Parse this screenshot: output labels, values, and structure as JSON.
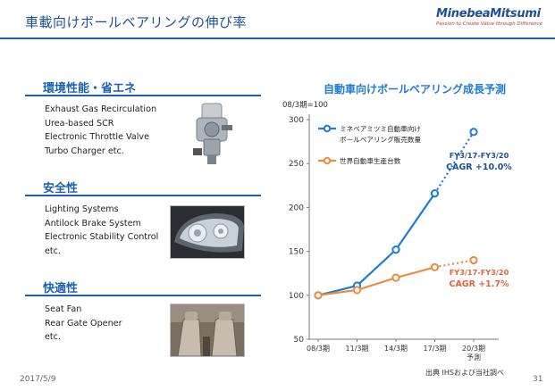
{
  "header": {
    "title": "車載向けボールベアリングの伸び率",
    "logo": "MinebeaMitsumi",
    "tagline": "Passion to Create Value through Difference"
  },
  "sections": [
    {
      "heading": "環境性能・省エネ",
      "items": [
        "Exhaust Gas Recirculation",
        "Urea-based SCR",
        "Electronic Throttle Valve",
        "Turbo Charger  etc."
      ]
    },
    {
      "heading": "安全性",
      "items": [
        "Lighting Systems",
        "Antilock Brake System",
        "Electronic Stability Control",
        "etc."
      ]
    },
    {
      "heading": "快適性",
      "items": [
        "Seat Fan",
        "Rear Gate Opener",
        "etc."
      ]
    }
  ],
  "chart_data": {
    "type": "line",
    "title": "自動車向けボールベアリング成長予測",
    "ylabel": "08/3期=100",
    "categories": [
      "08/3期",
      "11/3期",
      "14/3期",
      "17/3期",
      "20/3期\n予測"
    ],
    "ylim": [
      50,
      300
    ],
    "yticks": [
      50,
      100,
      150,
      200,
      250,
      300
    ],
    "series": [
      {
        "name": "ミネベアミツミ自動車向け\nボールベアリング販売数量",
        "values": [
          100,
          111,
          152,
          216,
          286
        ],
        "color": "#1e7bd6",
        "forecast_from_index": 3
      },
      {
        "name": "世界自動車生産台数",
        "values": [
          100,
          106,
          120,
          132,
          140
        ],
        "color": "#f08a3c",
        "forecast_from_index": 3
      }
    ],
    "annotations": [
      {
        "text": "FY3/17-FY3/20",
        "color": "#1e4f96"
      },
      {
        "text": "CAGR +10.0%",
        "color": "#1e4f96"
      },
      {
        "text": "FY3/17-FY3/20",
        "color": "#e0663a"
      },
      {
        "text": "CAGR +1.7%",
        "color": "#e0663a"
      }
    ],
    "legend": "top-left",
    "grid": false
  },
  "footer": {
    "date": "2017/5/9",
    "source": "出典 IHSおよび当社調べ",
    "page": "31"
  }
}
